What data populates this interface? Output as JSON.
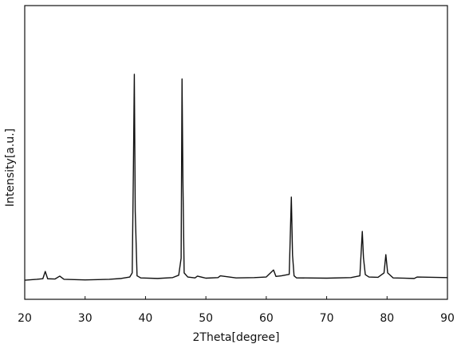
{
  "chart_data": {
    "type": "line",
    "x_label": "2Theta[degree]",
    "y_label": "Intensity[a.u.]",
    "color": "#111111",
    "xlim": [
      20,
      90
    ],
    "xticks": [
      20,
      30,
      40,
      50,
      60,
      70,
      80,
      90
    ],
    "ylim": [
      0,
      100
    ],
    "x": [
      20,
      22,
      23,
      23.4,
      23.8,
      25,
      25.8,
      26.5,
      30,
      34,
      36,
      37.4,
      37.8,
      38.0,
      38.15,
      38.3,
      38.6,
      39.2,
      42,
      44.5,
      45.5,
      45.9,
      46.05,
      46.2,
      46.4,
      47,
      48.2,
      48.6,
      50,
      52,
      52.4,
      55,
      58,
      60,
      61.2,
      61.6,
      62.5,
      63.8,
      64.15,
      64.35,
      64.6,
      65,
      70,
      74,
      75.5,
      75.9,
      76.1,
      76.4,
      77,
      78.5,
      79.5,
      79.8,
      80.1,
      81,
      84.5,
      85,
      90
    ],
    "values": [
      6.5,
      6.8,
      7,
      9.5,
      7,
      6.9,
      7.9,
      6.8,
      6.6,
      6.8,
      7.1,
      7.6,
      9,
      45,
      76.6,
      30,
      8,
      7.3,
      7.1,
      7.4,
      8.2,
      14,
      75,
      40,
      9,
      7.6,
      7.3,
      7.9,
      7.2,
      7.4,
      8,
      7.3,
      7.4,
      7.6,
      10,
      7.8,
      8,
      8.5,
      34.8,
      15,
      8,
      7.3,
      7.2,
      7.4,
      8,
      23.1,
      14,
      8.4,
      7.6,
      7.5,
      9,
      15.2,
      9,
      7.3,
      7.1,
      7.6,
      7.4
    ]
  }
}
